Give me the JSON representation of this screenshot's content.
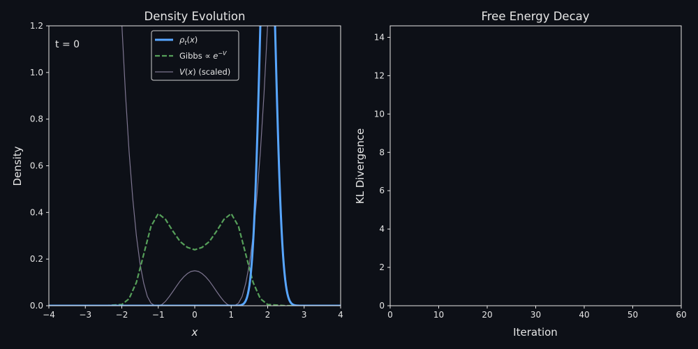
{
  "colors": {
    "background": "#0d1017",
    "axes": "#e6e6e6",
    "rho": "#58a6ff",
    "gibbs": "#56a05a",
    "potential": "#7d7590"
  },
  "chart_data": [
    {
      "type": "line",
      "title": "Density Evolution",
      "xlabel": "x",
      "ylabel": "Density",
      "xlim": [
        -4,
        4
      ],
      "ylim": [
        0,
        1.2
      ],
      "xticks": [
        "−4",
        "−3",
        "−2",
        "−1",
        "0",
        "1",
        "2",
        "3",
        "4"
      ],
      "yticks": [
        "0.0",
        "0.2",
        "0.4",
        "0.6",
        "0.8",
        "1.0",
        "1.2"
      ],
      "annotation": "t = 0",
      "legend_position": "top-center",
      "series": [
        {
          "name": "ρt(x)",
          "style": "solid-thick",
          "gaussian": {
            "mean": 2.0,
            "sd": 0.2
          }
        },
        {
          "name": "Gibbs ∝ e−V",
          "style": "dashed",
          "points": [
            [
              -4,
              0
            ],
            [
              -2.5,
              0
            ],
            [
              -2.0,
              0.005
            ],
            [
              -1.8,
              0.03
            ],
            [
              -1.6,
              0.1
            ],
            [
              -1.4,
              0.22
            ],
            [
              -1.2,
              0.34
            ],
            [
              -1.0,
              0.395
            ],
            [
              -0.8,
              0.37
            ],
            [
              -0.6,
              0.32
            ],
            [
              -0.4,
              0.275
            ],
            [
              -0.2,
              0.25
            ],
            [
              0,
              0.24
            ],
            [
              0.2,
              0.25
            ],
            [
              0.4,
              0.275
            ],
            [
              0.6,
              0.32
            ],
            [
              0.8,
              0.37
            ],
            [
              1.0,
              0.395
            ],
            [
              1.2,
              0.34
            ],
            [
              1.4,
              0.22
            ],
            [
              1.6,
              0.1
            ],
            [
              1.8,
              0.03
            ],
            [
              2.0,
              0.005
            ],
            [
              2.5,
              0
            ],
            [
              4,
              0
            ]
          ]
        },
        {
          "name": "V(x) (scaled)",
          "style": "thin",
          "points": [
            [
              -2.0,
              1.21
            ],
            [
              -1.9,
              0.91
            ],
            [
              -1.8,
              0.66
            ],
            [
              -1.7,
              0.46
            ],
            [
              -1.6,
              0.3
            ],
            [
              -1.5,
              0.18
            ],
            [
              -1.4,
              0.097
            ],
            [
              -1.3,
              0.04
            ],
            [
              -1.2,
              0.011
            ],
            [
              -1.1,
              0.001
            ],
            [
              -1.0,
              0
            ],
            [
              -0.9,
              0.005
            ],
            [
              -0.8,
              0.019
            ],
            [
              -0.7,
              0.039
            ],
            [
              -0.6,
              0.061
            ],
            [
              -0.5,
              0.084
            ],
            [
              -0.4,
              0.106
            ],
            [
              -0.3,
              0.124
            ],
            [
              -0.2,
              0.138
            ],
            [
              -0.1,
              0.147
            ],
            [
              0,
              0.15
            ],
            [
              0.1,
              0.147
            ],
            [
              0.2,
              0.138
            ],
            [
              0.3,
              0.124
            ],
            [
              0.4,
              0.106
            ],
            [
              0.5,
              0.084
            ],
            [
              0.6,
              0.061
            ],
            [
              0.7,
              0.039
            ],
            [
              0.8,
              0.019
            ],
            [
              0.9,
              0.005
            ],
            [
              1.0,
              0
            ],
            [
              1.1,
              0.001
            ],
            [
              1.2,
              0.011
            ],
            [
              1.3,
              0.04
            ],
            [
              1.4,
              0.097
            ],
            [
              1.5,
              0.18
            ],
            [
              1.6,
              0.3
            ],
            [
              1.7,
              0.46
            ],
            [
              1.8,
              0.66
            ],
            [
              1.9,
              0.91
            ],
            [
              2.0,
              1.21
            ]
          ]
        }
      ]
    },
    {
      "type": "line",
      "title": "Free Energy Decay",
      "xlabel": "Iteration",
      "ylabel": "KL Divergence",
      "xlim": [
        0,
        60
      ],
      "ylim": [
        0,
        14.6
      ],
      "xticks": [
        "0",
        "10",
        "20",
        "30",
        "40",
        "50",
        "60"
      ],
      "yticks": [
        "0",
        "2",
        "4",
        "6",
        "8",
        "10",
        "12",
        "14"
      ],
      "series": []
    }
  ]
}
